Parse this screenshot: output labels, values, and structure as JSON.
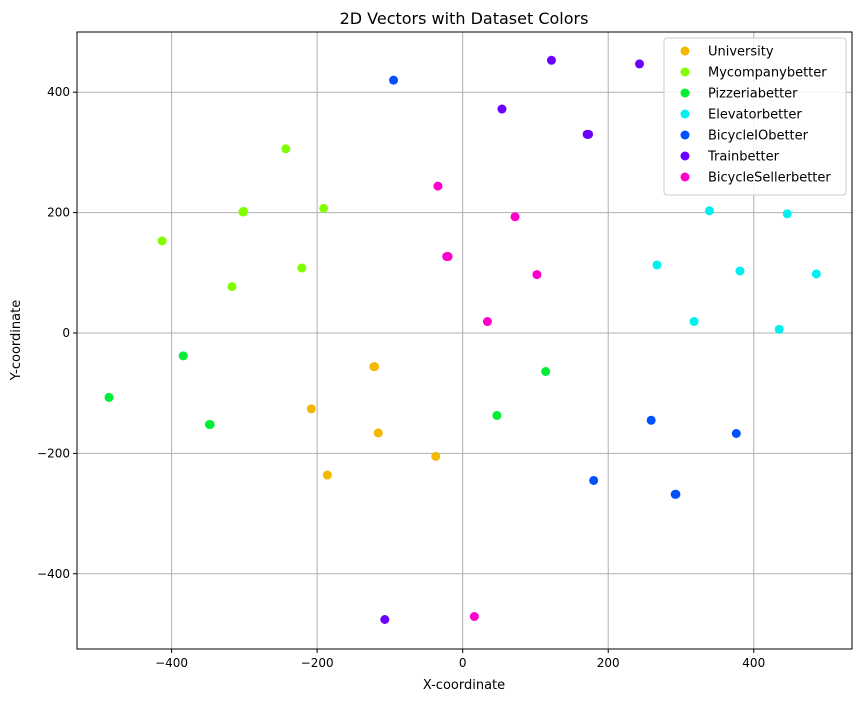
{
  "chart_data": {
    "type": "scatter",
    "title": "2D Vectors with Dataset Colors",
    "xlabel": "X-coordinate",
    "ylabel": "Y-coordinate",
    "xlim": [
      -530,
      535
    ],
    "ylim": [
      -525,
      500
    ],
    "xticks": [
      -400,
      -200,
      0,
      200,
      400
    ],
    "yticks": [
      -400,
      -200,
      0,
      200,
      400
    ],
    "xtick_labels": [
      "−400",
      "−200",
      "0",
      "200",
      "400"
    ],
    "ytick_labels": [
      "−400",
      "−200",
      "0",
      "200",
      "400"
    ],
    "grid": true,
    "legend_position": "top-right",
    "series": [
      {
        "name": "University",
        "color": "#f5b800",
        "points": [
          [
            -121,
            -56
          ],
          [
            -122,
            -56
          ],
          [
            -208,
            -126
          ],
          [
            -116,
            -166
          ],
          [
            -186,
            -236
          ],
          [
            -37,
            -205
          ]
        ]
      },
      {
        "name": "Mycompanybetter",
        "color": "#7fff00",
        "points": [
          [
            -243,
            306
          ],
          [
            -301,
            202
          ],
          [
            -302,
            201
          ],
          [
            -191,
            207
          ],
          [
            -413,
            153
          ],
          [
            -221,
            108
          ],
          [
            -317,
            77
          ]
        ]
      },
      {
        "name": "Pizzeriabetter",
        "color": "#00ee33",
        "points": [
          [
            -384,
            -38
          ],
          [
            -486,
            -107
          ],
          [
            -348,
            -152
          ],
          [
            -347,
            -152
          ],
          [
            114,
            -64
          ],
          [
            47,
            -137
          ]
        ]
      },
      {
        "name": "Elevatorbetter",
        "color": "#00f0ee",
        "points": [
          [
            339,
            203
          ],
          [
            446,
            198
          ],
          [
            267,
            113
          ],
          [
            381,
            103
          ],
          [
            486,
            98
          ],
          [
            318,
            19
          ],
          [
            435,
            6
          ]
        ]
      },
      {
        "name": "BicycleIObetter",
        "color": "#0050ff",
        "points": [
          [
            -95,
            420
          ],
          [
            259,
            -145
          ],
          [
            376,
            -167
          ],
          [
            180,
            -245
          ],
          [
            292,
            -268
          ],
          [
            293,
            -268
          ]
        ]
      },
      {
        "name": "Trainbetter",
        "color": "#6a00ff",
        "points": [
          [
            122,
            453
          ],
          [
            243,
            447
          ],
          [
            54,
            372
          ],
          [
            171,
            330
          ],
          [
            173,
            330
          ],
          [
            -107,
            -476
          ]
        ]
      },
      {
        "name": "BicycleSellerbetter",
        "color": "#ff00cc",
        "points": [
          [
            -34,
            244
          ],
          [
            72,
            193
          ],
          [
            -22,
            127
          ],
          [
            -20,
            127
          ],
          [
            102,
            97
          ],
          [
            34,
            19
          ],
          [
            16,
            -471
          ]
        ]
      }
    ]
  }
}
